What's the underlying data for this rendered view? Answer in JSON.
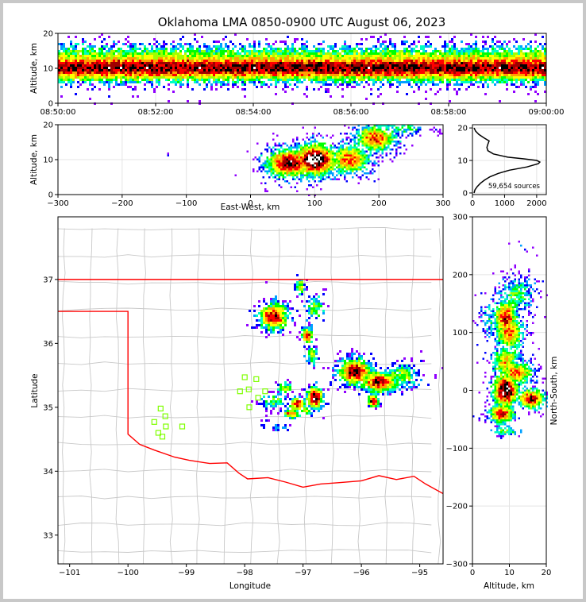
{
  "chart_data": [
    {
      "id": "altitude-time",
      "type": "heatmap",
      "title": "Oklahoma LMA 0850-0900 UTC August 06, 2023",
      "xlabel": "",
      "ylabel": "Altitude, km",
      "x_ticks": [
        "08:50:00",
        "08:52:00",
        "08:54:00",
        "08:56:00",
        "08:58:00",
        "09:00:00"
      ],
      "x_range_minutes": [
        0,
        10
      ],
      "y_ticks": [
        0,
        10,
        20
      ],
      "ylim": [
        0,
        20
      ],
      "dense_altitude_band_km": [
        5,
        15
      ],
      "peak_altitude_km": 10
    },
    {
      "id": "east-west-altitude",
      "type": "heatmap",
      "xlabel": "East-West, km",
      "ylabel": "Altitude, km",
      "x_ticks": [
        -300,
        -200,
        -100,
        0,
        100,
        200,
        300
      ],
      "xlim": [
        -300,
        300
      ],
      "y_ticks": [
        0,
        10,
        20
      ],
      "ylim": [
        0,
        20
      ],
      "clusters": [
        {
          "x": 60,
          "z": 9,
          "sx": 25,
          "sz": 2.8,
          "weight": 0.9
        },
        {
          "x": 100,
          "z": 10,
          "sx": 25,
          "sz": 3.2,
          "weight": 1.0
        },
        {
          "x": 155,
          "z": 10,
          "sx": 22,
          "sz": 3,
          "weight": 0.7
        },
        {
          "x": 195,
          "z": 16,
          "sx": 22,
          "sz": 2.6,
          "weight": 0.75
        },
        {
          "x": 240,
          "z": 19,
          "sx": 25,
          "sz": 1.6,
          "weight": 0.35
        },
        {
          "x": -130,
          "z": 10,
          "sx": 2,
          "sz": 1,
          "weight": 0.05
        }
      ]
    },
    {
      "id": "altitude-histogram",
      "type": "line",
      "annotation": "59,654 sources",
      "x_ticks": [
        0,
        1000,
        2000
      ],
      "xlim": [
        0,
        2300
      ],
      "y_ticks": [
        0,
        10,
        20
      ],
      "ylim": [
        -0.5,
        21
      ],
      "altitude_km": [
        0,
        1,
        2,
        3,
        4,
        5,
        6,
        7,
        8,
        9,
        9.5,
        10,
        10.5,
        11,
        12,
        13,
        14,
        15,
        16,
        17,
        18,
        19,
        20
      ],
      "counts": [
        50,
        80,
        150,
        250,
        380,
        550,
        800,
        1150,
        1700,
        2050,
        2100,
        2000,
        1600,
        1100,
        650,
        480,
        450,
        480,
        520,
        350,
        200,
        100,
        50
      ]
    },
    {
      "id": "plan-view-map",
      "type": "scatter",
      "xlabel": "Longitude",
      "ylabel": "Latitude",
      "x_ticks": [
        -101,
        -100,
        -99,
        -98,
        -97,
        -96,
        -95
      ],
      "xlim": [
        -101.2,
        -94.6
      ],
      "y_ticks": [
        33,
        34,
        35,
        36,
        37
      ],
      "ylim": [
        32.55,
        37.98
      ],
      "state_border_color": "#ff0000",
      "county_line_color": "#c8c8c8",
      "station_color": "#7fff00",
      "stations": [
        [
          -98.0,
          35.47
        ],
        [
          -97.8,
          35.44
        ],
        [
          -98.08,
          35.25
        ],
        [
          -97.93,
          35.28
        ],
        [
          -97.77,
          35.15
        ],
        [
          -97.65,
          35.25
        ],
        [
          -97.92,
          35.0
        ],
        [
          -99.44,
          34.98
        ],
        [
          -99.36,
          34.86
        ],
        [
          -99.55,
          34.77
        ],
        [
          -99.35,
          34.7
        ],
        [
          -99.07,
          34.7
        ],
        [
          -99.48,
          34.6
        ],
        [
          -99.41,
          34.54
        ]
      ],
      "clusters": [
        {
          "lon": -97.5,
          "lat": 36.42,
          "sx": 0.17,
          "sy": 0.15,
          "weight": 0.85
        },
        {
          "lon": -97.05,
          "lat": 36.88,
          "sx": 0.06,
          "sy": 0.09,
          "weight": 0.55
        },
        {
          "lon": -96.8,
          "lat": 36.55,
          "sx": 0.12,
          "sy": 0.14,
          "weight": 0.45
        },
        {
          "lon": -96.93,
          "lat": 36.12,
          "sx": 0.07,
          "sy": 0.09,
          "weight": 0.8
        },
        {
          "lon": -96.85,
          "lat": 35.82,
          "sx": 0.07,
          "sy": 0.1,
          "weight": 0.5
        },
        {
          "lon": -96.1,
          "lat": 35.55,
          "sx": 0.2,
          "sy": 0.14,
          "weight": 0.9
        },
        {
          "lon": -95.7,
          "lat": 35.4,
          "sx": 0.22,
          "sy": 0.12,
          "weight": 0.85
        },
        {
          "lon": -95.3,
          "lat": 35.5,
          "sx": 0.2,
          "sy": 0.12,
          "weight": 0.5
        },
        {
          "lon": -95.8,
          "lat": 35.1,
          "sx": 0.07,
          "sy": 0.07,
          "weight": 0.9
        },
        {
          "lon": -97.3,
          "lat": 35.3,
          "sx": 0.1,
          "sy": 0.06,
          "weight": 0.55
        },
        {
          "lon": -96.8,
          "lat": 35.15,
          "sx": 0.1,
          "sy": 0.12,
          "weight": 0.95
        },
        {
          "lon": -97.1,
          "lat": 35.05,
          "sx": 0.1,
          "sy": 0.07,
          "weight": 0.85
        },
        {
          "lon": -97.2,
          "lat": 34.9,
          "sx": 0.1,
          "sy": 0.05,
          "weight": 0.75
        },
        {
          "lon": -96.95,
          "lat": 34.95,
          "sx": 0.06,
          "sy": 0.05,
          "weight": 0.6
        },
        {
          "lon": -97.5,
          "lat": 35.1,
          "sx": 0.15,
          "sy": 0.08,
          "weight": 0.45
        },
        {
          "lon": -97.4,
          "lat": 34.68,
          "sx": 0.12,
          "sy": 0.04,
          "weight": 0.3
        },
        {
          "lon": -97.65,
          "lat": 34.75,
          "sx": 0.05,
          "sy": 0.05,
          "weight": 0.2
        }
      ]
    },
    {
      "id": "altitude-north-south",
      "type": "heatmap",
      "xlabel": "Altitude, km",
      "ylabel": "North-South, km",
      "x_ticks": [
        0,
        10,
        20
      ],
      "xlim": [
        0,
        20
      ],
      "y_ticks": [
        -300,
        -200,
        -100,
        0,
        100,
        200,
        300
      ],
      "ylim": [
        -300,
        300
      ],
      "clusters": [
        {
          "z": 9,
          "y": 125,
          "sz": 2.2,
          "sy": 22,
          "weight": 0.8
        },
        {
          "z": 10,
          "y": 100,
          "sz": 2.6,
          "sy": 22,
          "weight": 0.7
        },
        {
          "z": 12,
          "y": 165,
          "sz": 3.4,
          "sy": 20,
          "weight": 0.4
        },
        {
          "z": 9,
          "y": 50,
          "sz": 2.6,
          "sy": 20,
          "weight": 0.6
        },
        {
          "z": 12,
          "y": 30,
          "sz": 3.4,
          "sy": 14,
          "weight": 0.7
        },
        {
          "z": 9,
          "y": 0,
          "sz": 2.4,
          "sy": 20,
          "weight": 1.0
        },
        {
          "z": 16,
          "y": -15,
          "sz": 2.5,
          "sy": 12,
          "weight": 0.85
        },
        {
          "z": 8,
          "y": -40,
          "sz": 2.4,
          "sy": 12,
          "weight": 0.8
        },
        {
          "z": 5,
          "y": 120,
          "sz": 2.2,
          "sy": 25,
          "weight": 0.3
        },
        {
          "z": 9,
          "y": -70,
          "sz": 2.4,
          "sy": 6,
          "weight": 0.45
        },
        {
          "z": 13,
          "y": 250,
          "sz": 1.5,
          "sy": 8,
          "weight": 0.1
        }
      ]
    }
  ],
  "colors": {
    "colormap": [
      "#9000ff",
      "#0000ff",
      "#00a0ff",
      "#00ffc0",
      "#00ff00",
      "#a0ff00",
      "#ffff00",
      "#ffa000",
      "#ff0000",
      "#a00000",
      "#000000",
      "#ffffff"
    ],
    "grid": "#e4e4e4",
    "histogram_line": "#000000"
  }
}
